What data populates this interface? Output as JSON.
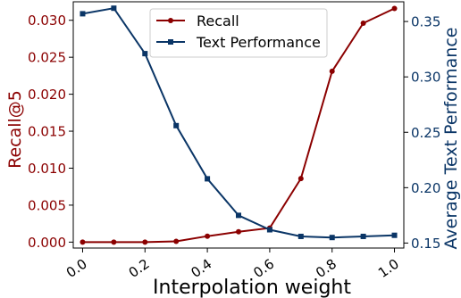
{
  "chart_data": {
    "type": "line",
    "xlabel": "Interpolation weight",
    "x_ticks": [
      "0.0",
      "0.2",
      "0.4",
      "0.6",
      "0.8",
      "1.0"
    ],
    "x_tick_values": [
      0.0,
      0.2,
      0.4,
      0.6,
      0.8,
      1.0
    ],
    "xlim": [
      -0.03,
      1.03
    ],
    "left_axis": {
      "label": "Recall@5",
      "color": "#8b0000",
      "ylim": [
        -0.0008,
        0.0325
      ],
      "ticks": [
        "0.000",
        "0.005",
        "0.010",
        "0.015",
        "0.020",
        "0.025",
        "0.030"
      ],
      "tick_values": [
        0.0,
        0.005,
        0.01,
        0.015,
        0.02,
        0.025,
        0.03
      ]
    },
    "right_axis": {
      "label": "Average Text Performance",
      "color": "#0a3566",
      "ylim": [
        0.1455,
        0.3678
      ],
      "ticks": [
        "0.15",
        "0.20",
        "0.25",
        "0.30",
        "0.35"
      ],
      "tick_values": [
        0.15,
        0.2,
        0.25,
        0.3,
        0.35
      ]
    },
    "x": [
      0.0,
      0.1,
      0.2,
      0.3,
      0.4,
      0.5,
      0.6,
      0.7,
      0.8,
      0.9,
      1.0
    ],
    "series": [
      {
        "name": "Recall",
        "axis": "left",
        "color": "#8b0000",
        "marker": "circle",
        "values": [
          0.0,
          0.0,
          0.0,
          0.0001,
          0.0008,
          0.0014,
          0.0019,
          0.0086,
          0.0231,
          0.0296,
          0.0316
        ]
      },
      {
        "name": "Text Performance",
        "axis": "right",
        "color": "#0a3566",
        "marker": "square",
        "values": [
          0.357,
          0.362,
          0.321,
          0.256,
          0.208,
          0.175,
          0.162,
          0.156,
          0.155,
          0.156,
          0.157
        ]
      }
    ],
    "legend": "top-center"
  }
}
